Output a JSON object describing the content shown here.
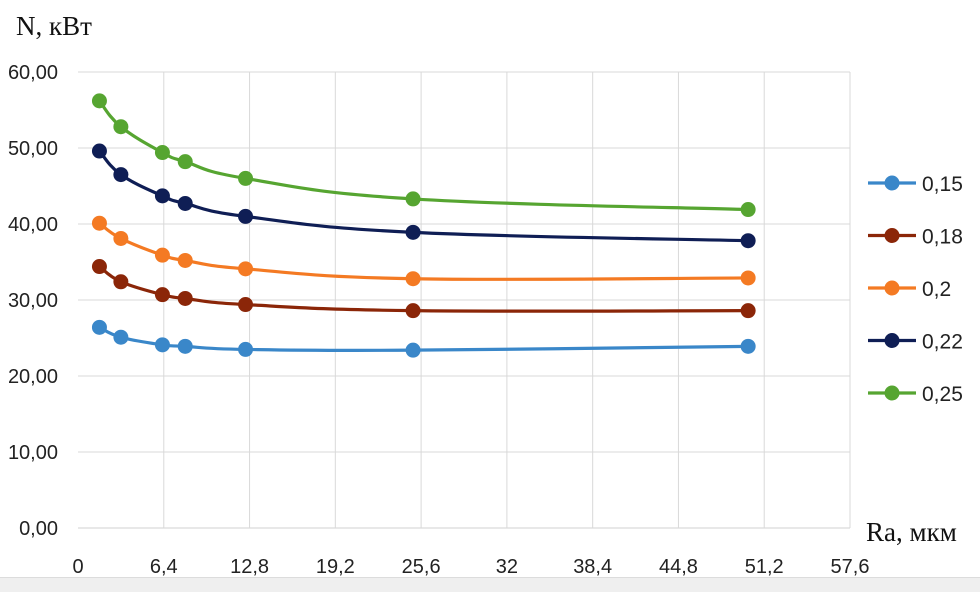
{
  "chart_data": {
    "type": "line",
    "ylabel": "N, кВт",
    "xlabel": "Ra, мкм",
    "ylim": [
      0,
      60
    ],
    "xlim": [
      0,
      57.6
    ],
    "yticks": [
      "0,00",
      "10,00",
      "20,00",
      "30,00",
      "40,00",
      "50,00",
      "60,00"
    ],
    "yticks_values": [
      0,
      10,
      20,
      30,
      40,
      50,
      60
    ],
    "xticks": [
      "0",
      "6,4",
      "12,8",
      "19,2",
      "25,6",
      "32",
      "38,4",
      "44,8",
      "51,2",
      "57,6"
    ],
    "xticks_values": [
      0,
      6.4,
      12.8,
      19.2,
      25.6,
      32,
      38.4,
      44.8,
      51.2,
      57.6
    ],
    "grid": "vertical and horizontal",
    "legend_position": "right",
    "x": [
      1.6,
      3.2,
      6.3,
      8.0,
      12.5,
      25.0,
      50.0
    ],
    "series": [
      {
        "name": "0,15",
        "color": "#3a87c9",
        "values": [
          26.4,
          25.1,
          24.1,
          23.9,
          23.5,
          23.4,
          23.9
        ]
      },
      {
        "name": "0,18",
        "color": "#8b2608",
        "values": [
          34.4,
          32.4,
          30.7,
          30.2,
          29.4,
          28.6,
          28.6
        ]
      },
      {
        "name": "0,2",
        "color": "#f47a23",
        "values": [
          40.1,
          38.1,
          35.9,
          35.2,
          34.1,
          32.8,
          32.9
        ]
      },
      {
        "name": "0,22",
        "color": "#0f1e55",
        "values": [
          49.6,
          46.5,
          43.7,
          42.7,
          41.0,
          38.9,
          37.8
        ]
      },
      {
        "name": "0,25",
        "color": "#56a531",
        "values": [
          56.2,
          52.8,
          49.4,
          48.2,
          46.0,
          43.3,
          41.9
        ]
      }
    ]
  }
}
